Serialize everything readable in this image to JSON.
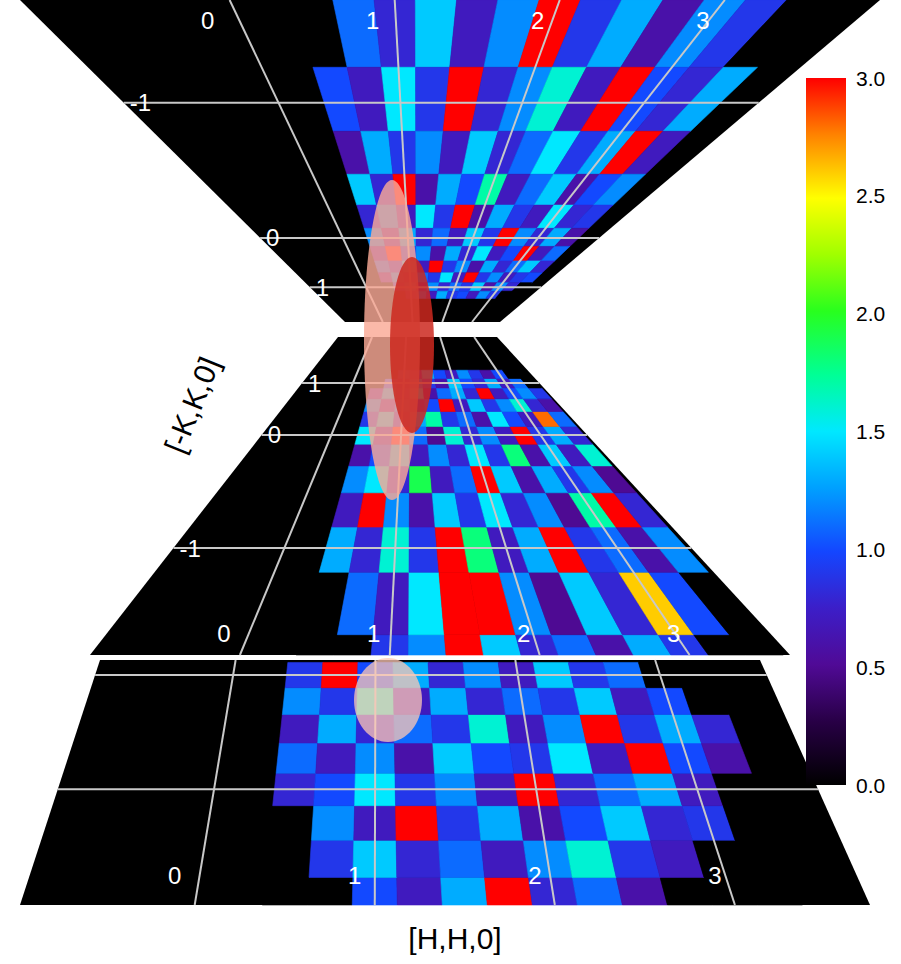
{
  "chart_data": {
    "type": "heatmap",
    "x_label": "[H,H,0]",
    "y_label": "[-K,K,0]",
    "grid": true,
    "colorbar": {
      "range": [
        0,
        3
      ],
      "ticks": [
        {
          "value": 0,
          "label": "0.0"
        },
        {
          "value": 0.5,
          "label": "0.5"
        },
        {
          "value": 1,
          "label": "1.0"
        },
        {
          "value": 1.5,
          "label": "1.5"
        },
        {
          "value": 2,
          "label": "2.0"
        },
        {
          "value": 2.5,
          "label": "2.5"
        },
        {
          "value": 3,
          "label": "3.0"
        }
      ]
    },
    "panels": [
      {
        "xlim": [
          -1.27,
          3.94
        ],
        "ylim": [
          -1.3,
          2.55
        ],
        "xticks": [
          0,
          1,
          2,
          3
        ],
        "yticks": [
          -1,
          0,
          1
        ],
        "h": [
          0.5,
          0.75,
          1,
          1.25,
          1.5,
          1.75,
          2,
          2.25,
          2.5,
          2.75,
          3,
          3.25,
          3.5
        ],
        "k": [
          -1.25,
          -1,
          -0.75,
          -0.5,
          -0.25,
          0,
          0.25,
          0.5,
          0.75,
          1,
          1.25
        ],
        "z": [
          [
            0,
            1.1,
            0.8,
            1.4,
            0.7,
            1.2,
            3,
            0.9,
            1.3,
            0.6,
            1.2,
            0.9,
            0
          ],
          [
            1.0,
            0.7,
            1.5,
            0.9,
            3,
            0.8,
            1.2,
            1.6,
            0.7,
            3,
            1.0,
            0.8,
            1.3
          ],
          [
            0.6,
            1.3,
            0.9,
            1.2,
            0.7,
            1.4,
            0.8,
            1.1,
            1.5,
            0.9,
            1.3,
            3,
            0.7
          ],
          [
            1.4,
            0.8,
            3,
            0.6,
            1.3,
            1.0,
            1.7,
            0.7,
            1.1,
            1.4,
            0.6,
            1.0,
            1.2
          ],
          [
            0.8,
            1.2,
            0.7,
            1.5,
            0.9,
            3,
            0.6,
            1.3,
            0.9,
            0.7,
            1.5,
            0.8,
            0.9
          ],
          [
            1.2,
            0.6,
            1.3,
            0.8,
            1.1,
            0.7,
            1.4,
            0.9,
            3,
            1.2,
            0.8,
            1.3,
            0.6
          ],
          [
            0.7,
            3,
            0.9,
            1.2,
            0.6,
            1.3,
            0.8,
            1.5,
            0.7,
            1.0,
            3,
            0.7,
            1.1
          ],
          [
            1.1,
            0.8,
            1.4,
            0.7,
            3,
            0.9,
            1.2,
            0.6,
            1.3,
            0.8,
            1.1,
            1.4,
            0.8
          ],
          [
            0.6,
            1.2,
            0.8,
            1.1,
            0.9,
            1.5,
            0.7,
            3,
            0.9,
            1.2,
            0.7,
            0.9,
            1.0
          ],
          [
            0,
            0.9,
            1.3,
            0.7,
            1.2,
            0.8,
            1.1,
            0.9,
            1.4,
            0.6,
            1.2,
            0.8,
            0
          ],
          [
            0,
            0,
            0.8,
            1.1,
            0.7,
            1.3,
            0.9,
            1.0,
            0.7,
            1.2,
            0.9,
            0,
            0
          ]
        ]
      },
      {
        "xlim": [
          -1,
          3.67
        ],
        "ylim": [
          -1.44,
          2.82
        ],
        "xticks": [
          0,
          1,
          2,
          3
        ],
        "yticks": [
          -1,
          0,
          1
        ],
        "h": [
          0.5,
          0.75,
          1,
          1.25,
          1.5,
          1.75,
          2,
          2.25,
          2.5,
          2.75,
          3,
          3.25,
          3.5
        ],
        "k": [
          -1.5,
          -1.25,
          -1,
          -0.75,
          -0.5,
          -0.25,
          0,
          0.25,
          0.5,
          0.75,
          1,
          1.25
        ],
        "z": [
          [
            0,
            0,
            0.9,
            1.2,
            3,
            1.4,
            0.8,
            1.1,
            0.6,
            1.3,
            0.9,
            0,
            0
          ],
          [
            0,
            1.1,
            0.7,
            1.5,
            3,
            3,
            1.2,
            0.5,
            1.4,
            0.8,
            2.6,
            1.0,
            0
          ],
          [
            1.3,
            0.8,
            1.6,
            0.9,
            3,
            1.8,
            0.7,
            1.3,
            3,
            0.9,
            1.1,
            0.6,
            1.2
          ],
          [
            0.7,
            3,
            1.2,
            0.6,
            1.4,
            0.9,
            1.5,
            0.8,
            1.2,
            0.5,
            1.7,
            3,
            0.8
          ],
          [
            1.2,
            1.5,
            0.8,
            1.9,
            0.7,
            1.1,
            3,
            1.4,
            0.6,
            1.3,
            0.9,
            1.2,
            0.5
          ],
          [
            0.6,
            1.0,
            1.4,
            0.7,
            1.2,
            0.8,
            1.5,
            0.9,
            1.8,
            0.6,
            1.4,
            0.7,
            1.6
          ],
          [
            1.5,
            0.7,
            3,
            1.1,
            0.5,
            1.6,
            0.8,
            1.2,
            0.7,
            3,
            0.9,
            1.3,
            0.8
          ],
          [
            0.9,
            1.4,
            0.8,
            1.3,
            1.7,
            0.9,
            1.1,
            0.6,
            1.5,
            1.0,
            0.7,
            2.8,
            1.1
          ],
          [
            1.2,
            0.6,
            1.1,
            0.8,
            1.0,
            3,
            0.7,
            1.4,
            0.9,
            1.2,
            1.6,
            0.8,
            0.6
          ],
          [
            0.7,
            1.3,
            0.9,
            1.5,
            0.6,
            1.1,
            1.3,
            0.8,
            3,
            0.7,
            1.0,
            1.2,
            0.9
          ],
          [
            0,
            1.0,
            0.7,
            1.2,
            0.9,
            0.6,
            1.4,
            1.0,
            0.8,
            1.3,
            0.7,
            1.1,
            0
          ],
          [
            0,
            0,
            1.1,
            0.8,
            1.3,
            1.0,
            0.7,
            1.2,
            0.9,
            0.6,
            1.0,
            0,
            0
          ]
        ]
      },
      {
        "xlim": [
          -0.97,
          3.75
        ],
        "ylim": [
          -1.8,
          0.15
        ],
        "xticks": [
          0,
          1,
          2,
          3
        ],
        "yticks": [
          -1,
          0
        ],
        "tick_labels": "x",
        "h": [
          0.5,
          0.75,
          1,
          1.25,
          1.5,
          1.75,
          2,
          2.25,
          2.5,
          2.75,
          3,
          3.25
        ],
        "k": [
          -1.75,
          -1.5,
          -1.25,
          -1,
          -0.75,
          -0.5,
          -0.25,
          0
        ],
        "z": [
          [
            0,
            0,
            1.0,
            0.7,
            1.3,
            3,
            0.8,
            1.1,
            0.6,
            0,
            0,
            0
          ],
          [
            0,
            0.9,
            1.4,
            0.8,
            1.1,
            0.7,
            1.2,
            1.6,
            0.9,
            0.7,
            0,
            0
          ],
          [
            0,
            1.2,
            0.7,
            3,
            0.9,
            1.3,
            0.6,
            1.0,
            1.4,
            0.8,
            0.9,
            0
          ],
          [
            0.8,
            1.0,
            1.5,
            0.9,
            1.2,
            0.7,
            3,
            0.8,
            1.1,
            1.3,
            0.7,
            0
          ],
          [
            1.1,
            0.7,
            1.2,
            0.6,
            1.4,
            1.0,
            0.9,
            1.5,
            0.7,
            3,
            1.0,
            0.6
          ],
          [
            0.7,
            1.3,
            0.8,
            1.1,
            0.9,
            1.6,
            0.7,
            1.2,
            3,
            0.9,
            1.3,
            0.8
          ],
          [
            1.2,
            0.9,
            1.6,
            0.7,
            1.3,
            0.8,
            1.1,
            0.9,
            1.4,
            0.7,
            1.0,
            0
          ],
          [
            0.9,
            3,
            1.0,
            1.3,
            0.8,
            1.2,
            0.7,
            1.4,
            0.9,
            1.1,
            0,
            0
          ]
        ]
      }
    ]
  }
}
